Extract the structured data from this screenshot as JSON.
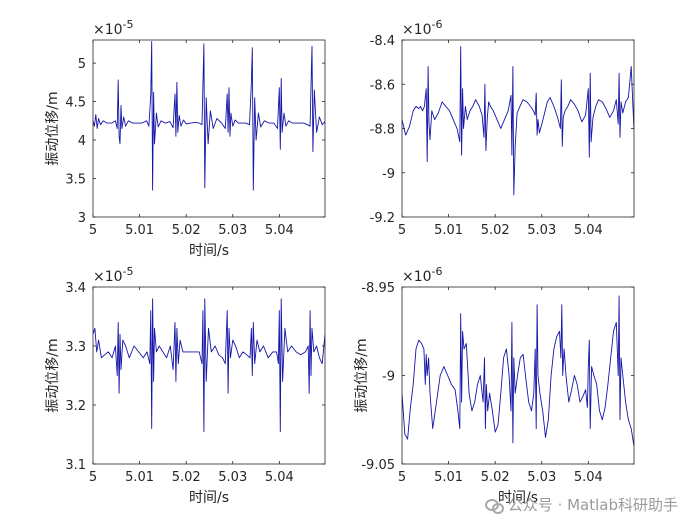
{
  "colors": {
    "line": "#1515a8",
    "axis": "#262626",
    "background": "#ffffff"
  },
  "watermark": {
    "text": "公众号 · Matlab科研助手",
    "icon": "wechat-icon"
  },
  "chart_data": [
    {
      "type": "line",
      "title": "",
      "xlabel": "时间/s",
      "ylabel": "振动位移/m",
      "exponent": "10",
      "exponent_power": "-5",
      "xlim": [
        5.0,
        5.0498
      ],
      "ylim": [
        3.0,
        5.3
      ],
      "xticks": [
        5.0,
        5.01,
        5.02,
        5.03,
        5.04
      ],
      "xtick_labels": [
        "5",
        "5.01",
        "5.02",
        "5.03",
        "5.04"
      ],
      "yticks": [
        3.0,
        3.5,
        4.0,
        4.5,
        5.0
      ],
      "ytick_labels": [
        "3",
        "3.5",
        "4",
        "4.5",
        "5"
      ],
      "series": [
        {
          "name": "displacement",
          "x": [
            5.0,
            5.0003,
            5.0006,
            5.0009,
            5.0012,
            5.0016,
            5.0022,
            5.003,
            5.004,
            5.0048,
            5.0052,
            5.0054,
            5.0056,
            5.0058,
            5.006,
            5.0062,
            5.0066,
            5.007,
            5.0076,
            5.0085,
            5.0095,
            5.0105,
            5.0115,
            5.012,
            5.0124,
            5.0126,
            5.0128,
            5.013,
            5.0132,
            5.0136,
            5.014,
            5.0146,
            5.0155,
            5.0165,
            5.0172,
            5.0176,
            5.0178,
            5.018,
            5.0182,
            5.0185,
            5.0189,
            5.0194,
            5.02,
            5.021,
            5.022,
            5.0228,
            5.0234,
            5.0236,
            5.0238,
            5.024,
            5.0243,
            5.0247,
            5.0252,
            5.0258,
            5.0266,
            5.0276,
            5.0284,
            5.0288,
            5.029,
            5.0292,
            5.0294,
            5.0296,
            5.03,
            5.0305,
            5.0312,
            5.032,
            5.0328,
            5.0336,
            5.034,
            5.0342,
            5.0344,
            5.0347,
            5.035,
            5.0355,
            5.036,
            5.0368,
            5.0378,
            5.0388,
            5.0396,
            5.04,
            5.0402,
            5.0404,
            5.0406,
            5.041,
            5.0414,
            5.042,
            5.0428,
            5.044,
            5.0452,
            5.046,
            5.0466,
            5.0468,
            5.047,
            5.0472,
            5.0475,
            5.048,
            5.0486,
            5.0492,
            5.0498
          ],
          "values": [
            4.25,
            4.18,
            4.33,
            4.15,
            4.28,
            4.2,
            4.25,
            4.22,
            4.22,
            4.25,
            4.15,
            4.78,
            4.05,
            3.95,
            4.45,
            4.15,
            4.3,
            4.18,
            4.25,
            4.22,
            4.22,
            4.22,
            4.25,
            4.18,
            4.6,
            5.28,
            3.35,
            4.62,
            3.95,
            4.35,
            4.17,
            4.25,
            4.22,
            4.24,
            4.16,
            4.6,
            4.05,
            4.75,
            4.1,
            4.32,
            4.18,
            4.26,
            4.21,
            4.22,
            4.23,
            4.22,
            4.2,
            4.7,
            5.25,
            3.38,
            4.55,
            3.95,
            4.38,
            4.15,
            4.28,
            4.22,
            4.15,
            4.6,
            4.1,
            4.68,
            4.05,
            4.35,
            4.18,
            4.26,
            4.22,
            4.22,
            4.22,
            4.2,
            4.75,
            5.2,
            3.35,
            4.55,
            4.0,
            4.35,
            4.17,
            4.25,
            4.22,
            4.22,
            4.15,
            4.68,
            3.88,
            4.8,
            4.1,
            4.35,
            4.18,
            4.25,
            4.22,
            4.22,
            4.22,
            4.2,
            4.18,
            4.7,
            5.22,
            3.85,
            4.65,
            4.1,
            4.3,
            4.2,
            4.24
          ]
        }
      ]
    },
    {
      "type": "line",
      "title": "",
      "xlabel": "",
      "ylabel": "",
      "exponent": "10",
      "exponent_power": "-6",
      "xlim": [
        5.0,
        5.0498
      ],
      "ylim": [
        -9.2,
        -8.4
      ],
      "xticks": [
        5.0,
        5.01,
        5.02,
        5.03,
        5.04
      ],
      "xtick_labels": [
        "5",
        "5.01",
        "5.02",
        "5.03",
        "5.04"
      ],
      "yticks": [
        -9.2,
        -9.0,
        -8.8,
        -8.6,
        -8.4
      ],
      "ytick_labels": [
        "-9.2",
        "-9",
        "-8.8",
        "-8.6",
        "-8.4"
      ],
      "series": [
        {
          "name": "displacement",
          "x": [
            5.0,
            5.0008,
            5.0016,
            5.0024,
            5.003,
            5.0036,
            5.004,
            5.0044,
            5.0048,
            5.0052,
            5.0054,
            5.0056,
            5.0058,
            5.006,
            5.0064,
            5.007,
            5.0078,
            5.0086,
            5.0094,
            5.0102,
            5.011,
            5.0118,
            5.0124,
            5.0126,
            5.0128,
            5.013,
            5.0132,
            5.0136,
            5.014,
            5.0146,
            5.0152,
            5.0158,
            5.0166,
            5.0172,
            5.0176,
            5.0178,
            5.018,
            5.0183,
            5.0186,
            5.019,
            5.0196,
            5.0204,
            5.0212,
            5.022,
            5.0228,
            5.0234,
            5.0236,
            5.0238,
            5.024,
            5.0243,
            5.0247,
            5.0253,
            5.026,
            5.0268,
            5.0276,
            5.0282,
            5.0286,
            5.0288,
            5.029,
            5.0292,
            5.0295,
            5.03,
            5.0306,
            5.0312,
            5.0318,
            5.0326,
            5.0334,
            5.034,
            5.0342,
            5.0344,
            5.0346,
            5.035,
            5.0356,
            5.0362,
            5.037,
            5.0378,
            5.0386,
            5.0394,
            5.04,
            5.0402,
            5.0404,
            5.0406,
            5.041,
            5.0416,
            5.0422,
            5.043,
            5.0438,
            5.0446,
            5.0454,
            5.046,
            5.0464,
            5.0466,
            5.0468,
            5.047,
            5.0474,
            5.048,
            5.0486,
            5.0492,
            5.0498
          ],
          "values": [
            -8.76,
            -8.83,
            -8.79,
            -8.72,
            -8.7,
            -8.71,
            -8.7,
            -8.72,
            -8.7,
            -8.62,
            -8.95,
            -8.52,
            -8.78,
            -8.85,
            -8.72,
            -8.76,
            -8.73,
            -8.68,
            -8.7,
            -8.72,
            -8.76,
            -8.8,
            -8.86,
            -8.43,
            -8.92,
            -8.62,
            -8.8,
            -8.7,
            -8.76,
            -8.72,
            -8.7,
            -8.67,
            -8.7,
            -8.74,
            -8.84,
            -8.6,
            -8.9,
            -8.75,
            -8.68,
            -8.7,
            -8.72,
            -8.76,
            -8.8,
            -8.76,
            -8.72,
            -8.65,
            -8.92,
            -8.52,
            -9.1,
            -8.88,
            -8.73,
            -8.7,
            -8.67,
            -8.68,
            -8.7,
            -8.72,
            -8.74,
            -8.64,
            -8.83,
            -8.76,
            -8.82,
            -8.78,
            -8.73,
            -8.68,
            -8.66,
            -8.7,
            -8.75,
            -8.8,
            -8.58,
            -8.88,
            -8.75,
            -8.72,
            -8.7,
            -8.67,
            -8.69,
            -8.72,
            -8.77,
            -8.74,
            -8.62,
            -8.93,
            -8.55,
            -8.86,
            -8.75,
            -8.7,
            -8.67,
            -8.68,
            -8.71,
            -8.75,
            -8.72,
            -8.67,
            -8.78,
            -8.55,
            -8.84,
            -8.68,
            -8.73,
            -8.68,
            -8.66,
            -8.52,
            -8.81
          ]
        }
      ]
    },
    {
      "type": "line",
      "title": "",
      "xlabel": "时间/s",
      "ylabel": "振动位移/m",
      "exponent": "10",
      "exponent_power": "-5",
      "xlim": [
        5.0,
        5.0498
      ],
      "ylim": [
        3.1,
        3.4
      ],
      "xticks": [
        5.0,
        5.01,
        5.02,
        5.03,
        5.04
      ],
      "xtick_labels": [
        "5",
        "5.01",
        "5.02",
        "5.03",
        "5.04"
      ],
      "yticks": [
        3.1,
        3.2,
        3.3,
        3.4
      ],
      "ytick_labels": [
        "3.1",
        "3.2",
        "3.3",
        "3.4"
      ],
      "series": [
        {
          "name": "displacement",
          "x": [
            5.0,
            5.0004,
            5.0008,
            5.0012,
            5.0018,
            5.0025,
            5.0033,
            5.0041,
            5.0048,
            5.0052,
            5.0054,
            5.0056,
            5.0058,
            5.006,
            5.0064,
            5.007,
            5.0078,
            5.0088,
            5.0098,
            5.0108,
            5.0116,
            5.0122,
            5.0124,
            5.0126,
            5.0128,
            5.013,
            5.0132,
            5.0136,
            5.0142,
            5.015,
            5.0158,
            5.0166,
            5.0172,
            5.0176,
            5.0178,
            5.018,
            5.0183,
            5.0187,
            5.0193,
            5.02,
            5.021,
            5.022,
            5.0228,
            5.0234,
            5.0236,
            5.0238,
            5.024,
            5.0243,
            5.0248,
            5.0254,
            5.0262,
            5.027,
            5.0278,
            5.0284,
            5.0288,
            5.029,
            5.0292,
            5.0295,
            5.03,
            5.0306,
            5.0314,
            5.0322,
            5.033,
            5.0337,
            5.034,
            5.0342,
            5.0344,
            5.0347,
            5.0352,
            5.0358,
            5.0366,
            5.0376,
            5.0386,
            5.0394,
            5.0398,
            5.04,
            5.0402,
            5.0404,
            5.0407,
            5.0412,
            5.0418,
            5.0426,
            5.0436,
            5.0446,
            5.0456,
            5.0462,
            5.0464,
            5.0466,
            5.0468,
            5.047,
            5.0474,
            5.048,
            5.0486,
            5.0492,
            5.0498
          ],
          "values": [
            3.32,
            3.33,
            3.29,
            3.31,
            3.28,
            3.285,
            3.29,
            3.28,
            3.3,
            3.25,
            3.34,
            3.22,
            3.32,
            3.26,
            3.31,
            3.3,
            3.28,
            3.3,
            3.29,
            3.28,
            3.29,
            3.27,
            3.36,
            3.16,
            3.38,
            3.24,
            3.33,
            3.29,
            3.3,
            3.29,
            3.28,
            3.3,
            3.26,
            3.34,
            3.24,
            3.33,
            3.27,
            3.31,
            3.29,
            3.29,
            3.29,
            3.29,
            3.29,
            3.27,
            3.36,
            3.155,
            3.38,
            3.24,
            3.33,
            3.29,
            3.3,
            3.285,
            3.28,
            3.27,
            3.36,
            3.22,
            3.33,
            3.28,
            3.31,
            3.3,
            3.28,
            3.29,
            3.285,
            3.28,
            3.33,
            3.25,
            3.34,
            3.27,
            3.31,
            3.29,
            3.3,
            3.28,
            3.29,
            3.29,
            3.27,
            3.36,
            3.155,
            3.38,
            3.24,
            3.33,
            3.29,
            3.3,
            3.29,
            3.285,
            3.29,
            3.3,
            3.22,
            3.36,
            3.25,
            3.33,
            3.29,
            3.3,
            3.28,
            3.27,
            3.32
          ]
        }
      ]
    },
    {
      "type": "line",
      "title": "",
      "xlabel": "时间/s",
      "ylabel": "振动位移/m",
      "exponent": "10",
      "exponent_power": "-6",
      "xlim": [
        5.0,
        5.0498
      ],
      "ylim": [
        -9.05,
        -8.95
      ],
      "xticks": [
        5.0,
        5.01,
        5.02,
        5.03,
        5.04
      ],
      "xtick_labels": [
        "5",
        "5.01",
        "5.02",
        "5.03",
        "5.04"
      ],
      "yticks": [
        -9.05,
        -9.0,
        -8.95
      ],
      "ytick_labels": [
        "-9.05",
        "-9",
        "-8.95"
      ],
      "series": [
        {
          "name": "displacement",
          "x": [
            5.0,
            5.0006,
            5.0012,
            5.0018,
            5.0024,
            5.003,
            5.0036,
            5.0042,
            5.0047,
            5.005,
            5.0052,
            5.0054,
            5.0057,
            5.006,
            5.0066,
            5.0074,
            5.0082,
            5.009,
            5.0098,
            5.0106,
            5.0114,
            5.012,
            5.0124,
            5.0126,
            5.0128,
            5.013,
            5.0133,
            5.0138,
            5.0144,
            5.015,
            5.0156,
            5.0162,
            5.0168,
            5.0174,
            5.0177,
            5.0179,
            5.0181,
            5.0184,
            5.0188,
            5.0194,
            5.02,
            5.0206,
            5.0212,
            5.0218,
            5.0224,
            5.023,
            5.0234,
            5.0236,
            5.0238,
            5.024,
            5.0243,
            5.0248,
            5.0254,
            5.026,
            5.0266,
            5.0272,
            5.0278,
            5.0283,
            5.0286,
            5.0288,
            5.029,
            5.0292,
            5.0296,
            5.0302,
            5.0308,
            5.0314,
            5.032,
            5.0326,
            5.0332,
            5.0338,
            5.0341,
            5.0343,
            5.0345,
            5.0348,
            5.0352,
            5.0358,
            5.0364,
            5.037,
            5.0376,
            5.0382,
            5.0388,
            5.0394,
            5.0398,
            5.04,
            5.0402,
            5.0404,
            5.0407,
            5.0412,
            5.0418,
            5.0424,
            5.043,
            5.0436,
            5.0442,
            5.0448,
            5.0454,
            5.046,
            5.0464,
            5.0466,
            5.0468,
            5.047,
            5.0474,
            5.048,
            5.0486,
            5.0492,
            5.0498
          ],
          "values": [
            -9.01,
            -9.033,
            -9.036,
            -9.018,
            -9.005,
            -8.985,
            -8.98,
            -8.982,
            -8.985,
            -9.005,
            -8.988,
            -9.0,
            -8.99,
            -9.01,
            -9.03,
            -9.015,
            -9.0,
            -8.995,
            -9.0,
            -9.005,
            -9.008,
            -9.02,
            -9.03,
            -8.965,
            -9.015,
            -8.975,
            -8.985,
            -8.982,
            -9.01,
            -9.02,
            -9.015,
            -9.005,
            -9.0,
            -9.015,
            -8.99,
            -9.03,
            -9.005,
            -9.02,
            -9.01,
            -9.02,
            -9.032,
            -9.028,
            -9.01,
            -8.99,
            -8.985,
            -9.0,
            -9.02,
            -8.97,
            -9.038,
            -8.99,
            -9.01,
            -9.0,
            -8.99,
            -8.988,
            -9.002,
            -9.015,
            -9.02,
            -9.01,
            -8.985,
            -9.03,
            -8.96,
            -9.0,
            -9.01,
            -9.02,
            -9.035,
            -9.025,
            -9.0,
            -8.985,
            -8.978,
            -8.975,
            -8.99,
            -8.96,
            -9.0,
            -8.985,
            -9.0,
            -9.015,
            -9.008,
            -9.0,
            -9.005,
            -9.015,
            -9.012,
            -9.008,
            -9.018,
            -8.995,
            -8.98,
            -9.03,
            -8.995,
            -9.0,
            -9.005,
            -9.02,
            -9.025,
            -9.018,
            -9.005,
            -8.99,
            -8.975,
            -8.97,
            -9.0,
            -8.955,
            -9.025,
            -8.99,
            -9.0,
            -9.015,
            -9.025,
            -9.03,
            -9.04
          ]
        }
      ]
    }
  ]
}
